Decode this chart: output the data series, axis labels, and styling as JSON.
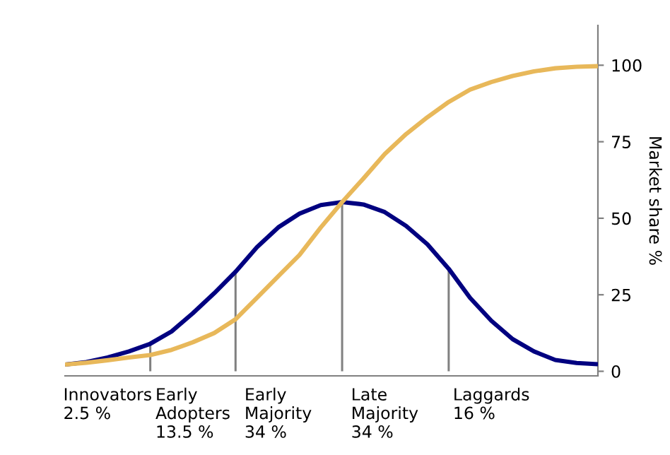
{
  "chart_data": {
    "type": "line",
    "ylabel": "Market share %",
    "ylim": [
      -1.5,
      113
    ],
    "yticks": [
      0,
      25,
      50,
      75,
      100
    ],
    "categories": [
      null,
      null,
      "Innovators\n2.5 %",
      null,
      null,
      null,
      "Early\nAdopters\n13.5 %",
      null,
      null,
      null,
      "Early\nMajority\n34 %",
      null,
      null,
      null,
      null,
      "Late\nMajority\n34 %",
      null,
      null,
      null,
      null,
      "Laggards\n16 %",
      null,
      null,
      null,
      null,
      null
    ],
    "grid": false,
    "legend": false,
    "marker": "none",
    "line_style": "solid",
    "series": [
      {
        "color": "#000080",
        "values": [
          2.2,
          3,
          4.5,
          6.5,
          9,
          13,
          19,
          25.5,
          32.5,
          40.5,
          47,
          51.5,
          54.3,
          55.3,
          54.5,
          52,
          47.5,
          41.5,
          33.5,
          24,
          16.5,
          10.5,
          6.5,
          3.7,
          2.7,
          2.3
        ]
      },
      {
        "color": "#e8b85a",
        "values": [
          2.2,
          2.8,
          3.6,
          4.5,
          5.3,
          7,
          9.5,
          12.5,
          17,
          24,
          31,
          38,
          47,
          55.3,
          63,
          71,
          77.5,
          83,
          88,
          92,
          94.5,
          96.5,
          98,
          99,
          99.5,
          99.7
        ]
      },
      {
        "type": "bar",
        "color": "#808080",
        "values": [
          null,
          null,
          null,
          null,
          9,
          null,
          null,
          null,
          32.5,
          null,
          null,
          null,
          null,
          55.3,
          null,
          null,
          null,
          null,
          33.5,
          null,
          null,
          null,
          null,
          null,
          null,
          null
        ]
      }
    ]
  }
}
